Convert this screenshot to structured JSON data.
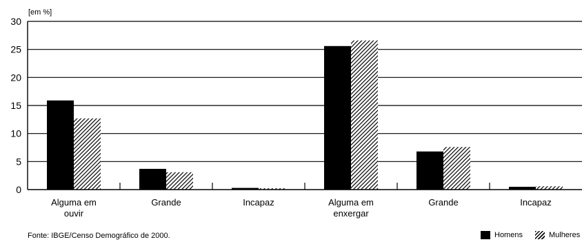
{
  "chart_data": {
    "type": "bar",
    "ylabel": "[em %]",
    "ylim": [
      0,
      30
    ],
    "yticks": [
      0,
      5,
      10,
      15,
      20,
      25,
      30
    ],
    "grid": true,
    "categories": [
      [
        "Alguma em",
        "ouvir"
      ],
      [
        "Grande"
      ],
      [
        "Incapaz"
      ],
      [
        "Alguma em",
        "enxergar"
      ],
      [
        "Grande"
      ],
      [
        "Incapaz"
      ]
    ],
    "series": [
      {
        "name": "Homens",
        "pattern": "solid",
        "color": "#000000",
        "values": [
          15.9,
          3.7,
          0.3,
          25.6,
          6.8,
          0.5
        ]
      },
      {
        "name": "Mulheres",
        "pattern": "hatched",
        "color": "#000000",
        "values": [
          12.7,
          3.1,
          0.25,
          26.6,
          7.6,
          0.6
        ]
      }
    ],
    "legend_position": "bottom-right",
    "source": "Fonte: IBGE/Censo Demográfico de 2000."
  }
}
